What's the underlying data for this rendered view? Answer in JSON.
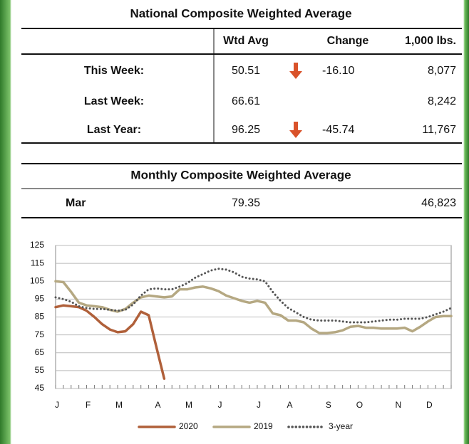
{
  "table": {
    "title": "National Composite Weighted Average",
    "columns": [
      "Wtd Avg",
      "Change",
      "1,000 lbs."
    ],
    "rows": [
      {
        "label": "This Week:",
        "wtd_avg": "50.51",
        "trend": "down",
        "change": "-16.10",
        "lbs": "8,077"
      },
      {
        "label": "Last Week:",
        "wtd_avg": "66.61",
        "lbs": "8,242"
      },
      {
        "label": "Last Year:",
        "wtd_avg": "96.25",
        "trend": "down",
        "change": "-45.74",
        "lbs": "11,767"
      }
    ]
  },
  "monthly": {
    "title": "Monthly Composite Weighted Average",
    "rows": [
      {
        "label": "Mar",
        "wtd_avg": "79.35",
        "lbs": "46,823"
      }
    ]
  },
  "chart_data": {
    "type": "line",
    "categories": [
      "J",
      null,
      null,
      null,
      "F",
      null,
      null,
      null,
      "M",
      null,
      null,
      null,
      null,
      "A",
      null,
      null,
      null,
      "M",
      null,
      null,
      null,
      "J",
      null,
      null,
      null,
      null,
      "J",
      null,
      null,
      null,
      "A",
      null,
      null,
      null,
      null,
      "S",
      null,
      null,
      null,
      "O",
      null,
      null,
      null,
      null,
      "N",
      null,
      null,
      null,
      "D",
      null,
      null,
      null
    ],
    "series": [
      {
        "name": "2020",
        "color": "#b0603a",
        "style": "solid",
        "values": [
          90.5,
          91.5,
          91,
          90.5,
          88.5,
          85,
          81,
          78,
          76.5,
          77,
          81,
          88,
          86,
          68,
          50.51,
          null,
          null,
          null,
          null,
          null,
          null,
          null,
          null,
          null,
          null,
          null,
          null,
          null,
          null,
          null,
          null,
          null,
          null,
          null,
          null,
          null,
          null,
          null,
          null,
          null,
          null,
          null,
          null,
          null,
          null,
          null,
          null,
          null,
          null,
          null,
          null,
          null
        ]
      },
      {
        "name": "2019",
        "color": "#b5a882",
        "style": "solid",
        "values": [
          105,
          104.5,
          99,
          93,
          91.5,
          91,
          90.5,
          89,
          88,
          89.5,
          93,
          96,
          97,
          96.5,
          96,
          96.5,
          100.5,
          100.5,
          101.5,
          102,
          101,
          99.5,
          97,
          95.5,
          94,
          93,
          94,
          93,
          87,
          86,
          83,
          83,
          82,
          78.5,
          76,
          76,
          76.5,
          77.5,
          79.5,
          80,
          79,
          79,
          78.5,
          78.5,
          78.5,
          79,
          77,
          79.5,
          82.5,
          85,
          85.5,
          85.5
        ]
      },
      {
        "name": "3-year",
        "color": "#555555",
        "style": "dotted",
        "values": [
          96,
          95,
          93.5,
          91,
          90,
          89.5,
          89.5,
          89,
          88.5,
          89,
          92,
          97,
          100.5,
          101,
          100.5,
          100.5,
          102,
          104,
          107,
          109,
          111,
          112,
          111.5,
          110,
          107.5,
          106.5,
          106,
          105,
          99,
          94,
          90,
          87.5,
          85,
          83.5,
          83,
          83,
          83,
          82.5,
          82,
          82,
          82,
          82.5,
          83,
          83.5,
          83.5,
          84,
          84,
          84,
          85,
          86.5,
          88,
          90
        ]
      }
    ],
    "ylim": [
      45,
      125
    ],
    "yticks": [
      45,
      55,
      65,
      75,
      85,
      95,
      105,
      115,
      125
    ],
    "grid": true
  }
}
